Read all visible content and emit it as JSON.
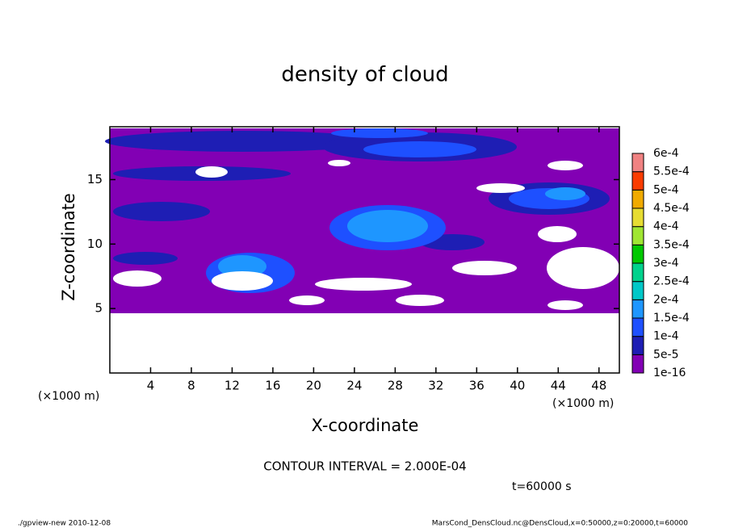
{
  "chart_data": {
    "type": "contour",
    "title": "density of cloud",
    "xlabel": "X-coordinate",
    "ylabel": "Z-coordinate",
    "unit_labels": [
      "(×1000 m)",
      "(×1000 m)"
    ],
    "xlim": [
      0,
      50
    ],
    "ylim": [
      0,
      19.1
    ],
    "xticks": [
      4,
      8,
      12,
      16,
      20,
      24,
      28,
      32,
      36,
      40,
      44,
      48
    ],
    "yticks": [
      5,
      10,
      15
    ],
    "levels": [
      1e-16,
      {
        "value": 5e-05,
        "label": "5e-5"
      },
      {
        "value": 0.0001,
        "label": "1e-4"
      },
      {
        "value": 0.00015,
        "label": "1.5e-4"
      },
      {
        "value": 0.0002,
        "label": "2e-4"
      },
      {
        "value": 0.00025,
        "label": "2.5e-4"
      },
      {
        "value": 0.0003,
        "label": "3e-4"
      },
      {
        "value": 0.00035,
        "label": "3.5e-4"
      },
      {
        "value": 0.0004,
        "label": "4e-4"
      },
      {
        "value": 0.00045,
        "label": "4.5e-4"
      },
      {
        "value": 0.0005,
        "label": "5e-4"
      },
      {
        "value": 0.00055,
        "label": "5.5e-4"
      },
      {
        "value": 0.0006,
        "label": "6e-4"
      }
    ],
    "colors": [
      "#8200b4",
      "#1e1eb4",
      "#1e50ff",
      "#1e96ff",
      "#00c8c8",
      "#00d28c",
      "#00c800",
      "#a0e632",
      "#e6dc32",
      "#f0aa00",
      "#fa3c00",
      "#f08282"
    ],
    "contour_interval": "CONTOUR INTERVAL = 2.000E-04",
    "time_label": "t=60000 s",
    "footer_left": "./gpview-new  2010-12-08",
    "footer_right": "MarsCond_DensCloud.nc@DensCloud,x=0:50000,z=0:20000,t=60000"
  }
}
